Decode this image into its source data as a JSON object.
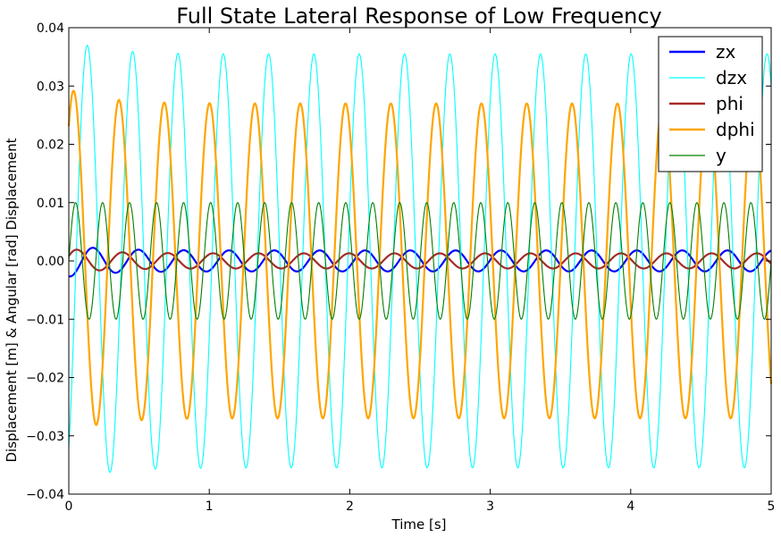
{
  "chart_data": {
    "type": "line",
    "title": "Full State Lateral Response of Low Frequency",
    "xlabel": "Time [s]",
    "ylabel": "Displacement [m] & Angular [rad] Displacement",
    "xlim": [
      0,
      5
    ],
    "ylim": [
      -0.04,
      0.04
    ],
    "x_ticks": [
      "0",
      "1",
      "2",
      "3",
      "4",
      "5"
    ],
    "y_ticks": [
      "0.04",
      "0.03",
      "0.02",
      "0.01",
      "0.00",
      "−0.01",
      "−0.02",
      "−0.03",
      "−0.04"
    ],
    "grid": false,
    "legend_position": "top-right",
    "series": [
      {
        "name": "zx",
        "color": "#0000ff",
        "amplitude": 0.0018,
        "frequency_hz": 3.1,
        "phase": -1.8,
        "offset": 0.0,
        "initial_peak": 0.0027
      },
      {
        "name": "dzx",
        "color": "#00ffff",
        "amplitude": 0.0355,
        "frequency_hz": 3.1,
        "phase": -1.0,
        "offset": 0.0,
        "initial_peak": -0.038
      },
      {
        "name": "phi",
        "color": "#a52a2a",
        "amplitude": 0.0013,
        "frequency_hz": 3.1,
        "phase": 0.4,
        "offset": 0.0,
        "initial_peak": 0.0021
      },
      {
        "name": "dphi",
        "color": "#ffa500",
        "amplitude": 0.027,
        "frequency_hz": 3.1,
        "phase": 0.9,
        "offset": 0.0,
        "initial_peak": -0.0295
      },
      {
        "name": "y",
        "color": "#008000",
        "amplitude": 0.01,
        "frequency_hz": 5.2,
        "phase": 0.0,
        "offset": 0.0,
        "initial_peak": 0.01
      }
    ]
  }
}
